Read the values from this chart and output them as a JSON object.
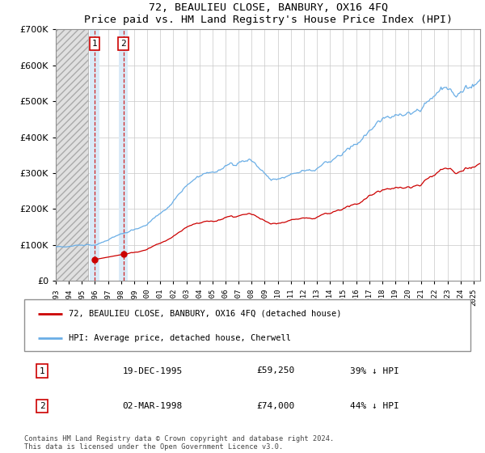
{
  "title": "72, BEAULIEU CLOSE, BANBURY, OX16 4FQ",
  "subtitle": "Price paid vs. HM Land Registry's House Price Index (HPI)",
  "ytick_vals": [
    0,
    100000,
    200000,
    300000,
    400000,
    500000,
    600000,
    700000
  ],
  "ylim": [
    0,
    700000
  ],
  "xlim_start": 1993.0,
  "xlim_end": 2025.5,
  "hpi_color": "#6aaee6",
  "price_color": "#cc0000",
  "sale1_date": 1995.97,
  "sale1_price": 59250,
  "sale2_date": 1998.17,
  "sale2_price": 74000,
  "legend_line1": "72, BEAULIEU CLOSE, BANBURY, OX16 4FQ (detached house)",
  "legend_line2": "HPI: Average price, detached house, Cherwell",
  "table_row1": [
    "1",
    "19-DEC-1995",
    "£59,250",
    "39% ↓ HPI"
  ],
  "table_row2": [
    "2",
    "02-MAR-1998",
    "£74,000",
    "44% ↓ HPI"
  ],
  "copyright": "Contains HM Land Registry data © Crown copyright and database right 2024.\nThis data is licensed under the Open Government Licence v3.0.",
  "hatch_region_end": 1995.5,
  "background_color": "#ffffff",
  "grid_color": "#c8c8c8",
  "sale1_hpi_ratio": 0.39,
  "sale2_hpi_ratio": 0.44
}
